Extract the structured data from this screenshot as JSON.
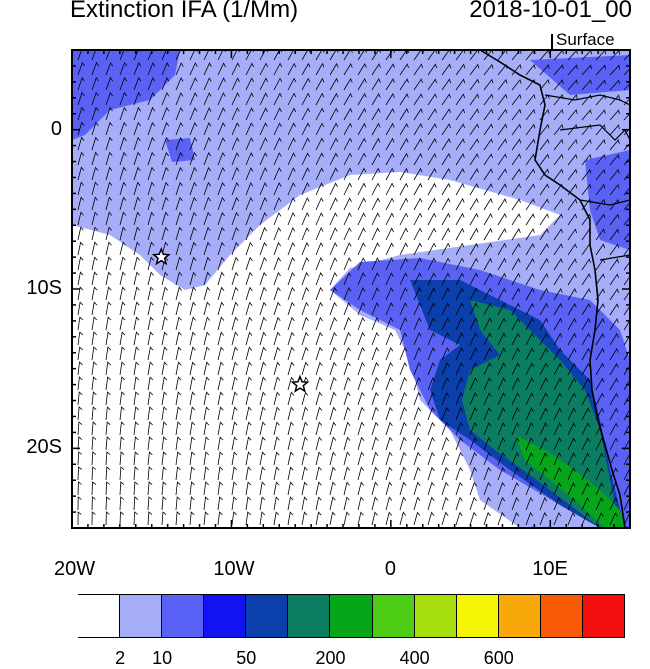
{
  "title": "Extinction IFA (1/Mm)",
  "datetime": "2018-10-01_00",
  "level": "Surface",
  "x_axis": {
    "ticks": [
      {
        "label": "20W",
        "lon": -20
      },
      {
        "label": "10W",
        "lon": -10
      },
      {
        "label": "0",
        "lon": 0
      },
      {
        "label": "10E",
        "lon": 10
      }
    ]
  },
  "y_axis": {
    "ticks": [
      {
        "label": "0",
        "lat": 0
      },
      {
        "label": "10S",
        "lat": -10
      },
      {
        "label": "20S",
        "lat": -20
      }
    ]
  },
  "extent": {
    "lon": [
      -20,
      15
    ],
    "lat": [
      -25,
      5
    ]
  },
  "markers": [
    {
      "name": "star-marker-ascension",
      "lon": -14.4,
      "lat": -8.0
    },
    {
      "name": "star-marker-st-helena",
      "lon": -5.7,
      "lat": -16.0
    }
  ],
  "colorbar": {
    "colors": [
      "#ffffff",
      "#a6aef9",
      "#5a62f6",
      "#1212f3",
      "#0a3fac",
      "#0b7e61",
      "#06a61a",
      "#4ccc14",
      "#a7e00e",
      "#f5f505",
      "#f8a808",
      "#f85a07",
      "#f51010"
    ],
    "labels": [
      {
        "text": "2",
        "after_box": 1
      },
      {
        "text": "10",
        "after_box": 2
      },
      {
        "text": "50",
        "after_box": 4
      },
      {
        "text": "200",
        "after_box": 6
      },
      {
        "text": "400",
        "after_box": 8
      },
      {
        "text": "600",
        "after_box": 10
      }
    ]
  }
}
